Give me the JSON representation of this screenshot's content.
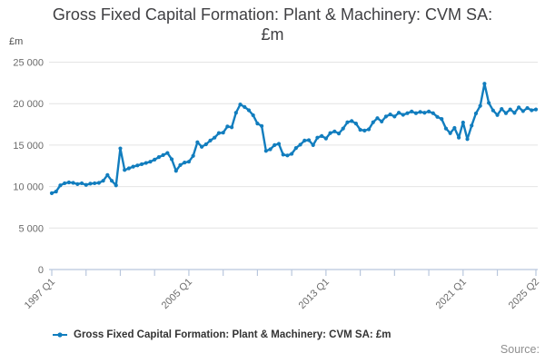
{
  "title": {
    "line1": "Gross Fixed Capital Formation: Plant & Machinery: CVM SA:",
    "line2": "£m"
  },
  "y_axis": {
    "unit": "£m",
    "tick_values": [
      0,
      5000,
      10000,
      15000,
      20000,
      25000
    ],
    "tick_labels": [
      "0",
      "5 000",
      "10 000",
      "15 000",
      "20 000",
      "25 000"
    ]
  },
  "x_axis": {
    "tick_positions_q": [
      0,
      8,
      16,
      24,
      32,
      40,
      48,
      56,
      64,
      72,
      80,
      88,
      96,
      104,
      113
    ],
    "labels": [
      {
        "q": 0,
        "text": "1997 Q1"
      },
      {
        "q": 32,
        "text": "2005 Q1"
      },
      {
        "q": 64,
        "text": "2013 Q1"
      },
      {
        "q": 96,
        "text": "2021 Q1"
      },
      {
        "q": 113,
        "text": "2025 Q2"
      }
    ]
  },
  "legend": {
    "label": "Gross Fixed Capital Formation: Plant & Machinery: CVM SA: £m"
  },
  "source": {
    "text": "Source:"
  },
  "colors": {
    "line": "#117dbe",
    "grid": "#e4e4e4",
    "axis": "#b9c7dd",
    "axis_text": "#6b6b6b",
    "title_text": "#3f3f42"
  },
  "chart_data": {
    "type": "line",
    "title": "Gross Fixed Capital Formation: Plant & Machinery: CVM SA: £m",
    "ylabel": "£m",
    "ylim": [
      0,
      25000
    ],
    "grid": true,
    "legend_position": "bottom",
    "x_start": "1997 Q1",
    "x_end": "2025 Q2",
    "frequency": "quarterly",
    "series": [
      {
        "name": "Gross Fixed Capital Formation: Plant & Machinery: CVM SA: £m",
        "values": [
          9200,
          9400,
          10150,
          10400,
          10500,
          10450,
          10300,
          10400,
          10200,
          10350,
          10400,
          10450,
          10700,
          11400,
          10700,
          10150,
          14600,
          12000,
          12200,
          12400,
          12550,
          12700,
          12850,
          13000,
          13250,
          13550,
          13800,
          14050,
          13300,
          11900,
          12600,
          12900,
          13000,
          13700,
          15350,
          14800,
          15100,
          15550,
          15900,
          16450,
          16500,
          17250,
          17150,
          18900,
          19900,
          19600,
          19200,
          18600,
          17600,
          17300,
          14300,
          14500,
          15000,
          15150,
          13850,
          13750,
          13950,
          14650,
          15050,
          15550,
          15600,
          15000,
          15900,
          16100,
          15800,
          16450,
          16650,
          16400,
          17000,
          17750,
          17900,
          17600,
          16850,
          16750,
          16900,
          17750,
          18250,
          17850,
          18450,
          18700,
          18450,
          18900,
          18650,
          18850,
          19050,
          18850,
          19000,
          18900,
          19050,
          18850,
          18400,
          18150,
          17000,
          16440,
          17070,
          15900,
          17730,
          15720,
          17360,
          18820,
          19730,
          22400,
          20090,
          19180,
          18630,
          19360,
          18850,
          19300,
          18890,
          19550,
          19100,
          19470,
          19200,
          19300
        ]
      }
    ]
  }
}
